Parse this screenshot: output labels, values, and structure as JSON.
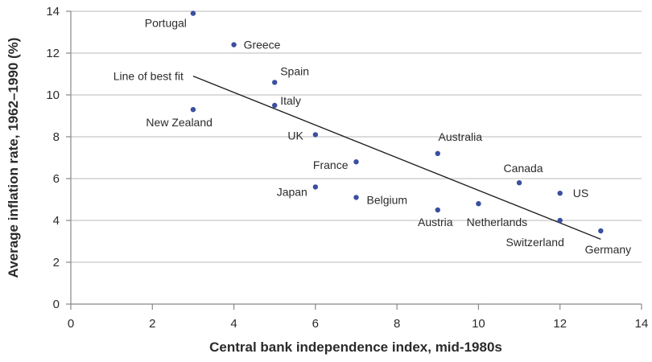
{
  "chart_data": {
    "type": "scatter",
    "title": "",
    "xlabel": "Central bank independence index, mid-1980s",
    "ylabel": "Average inflation rate, 1962–1990 (%)",
    "xlim": [
      0,
      14
    ],
    "ylim": [
      0,
      14
    ],
    "xticks": [
      0,
      2,
      4,
      6,
      8,
      10,
      12,
      14
    ],
    "yticks": [
      0,
      2,
      4,
      6,
      8,
      10,
      12,
      14
    ],
    "grid": "horizontal",
    "point_color": "#3a4fa0",
    "points": [
      {
        "label": "Portugal",
        "x": 3,
        "y": 13.9
      },
      {
        "label": "Greece",
        "x": 4,
        "y": 12.4
      },
      {
        "label": "Spain",
        "x": 5,
        "y": 10.6
      },
      {
        "label": "Italy",
        "x": 5,
        "y": 9.5
      },
      {
        "label": "New Zealand",
        "x": 3,
        "y": 9.3
      },
      {
        "label": "UK",
        "x": 6,
        "y": 8.1
      },
      {
        "label": "Australia",
        "x": 9,
        "y": 7.2
      },
      {
        "label": "France",
        "x": 7,
        "y": 6.8
      },
      {
        "label": "Canada",
        "x": 11,
        "y": 5.8
      },
      {
        "label": "Japan",
        "x": 6,
        "y": 5.6
      },
      {
        "label": "US",
        "x": 12,
        "y": 5.3
      },
      {
        "label": "Belgium",
        "x": 7,
        "y": 5.1
      },
      {
        "label": "Netherlands",
        "x": 10,
        "y": 4.8
      },
      {
        "label": "Austria",
        "x": 9,
        "y": 4.5
      },
      {
        "label": "Switzerland",
        "x": 12,
        "y": 4.0
      },
      {
        "label": "Germany",
        "x": 13,
        "y": 3.5
      }
    ],
    "fit_line": {
      "label": "Line of best fit",
      "x": [
        3,
        13
      ],
      "y": [
        10.9,
        3.1
      ]
    }
  }
}
